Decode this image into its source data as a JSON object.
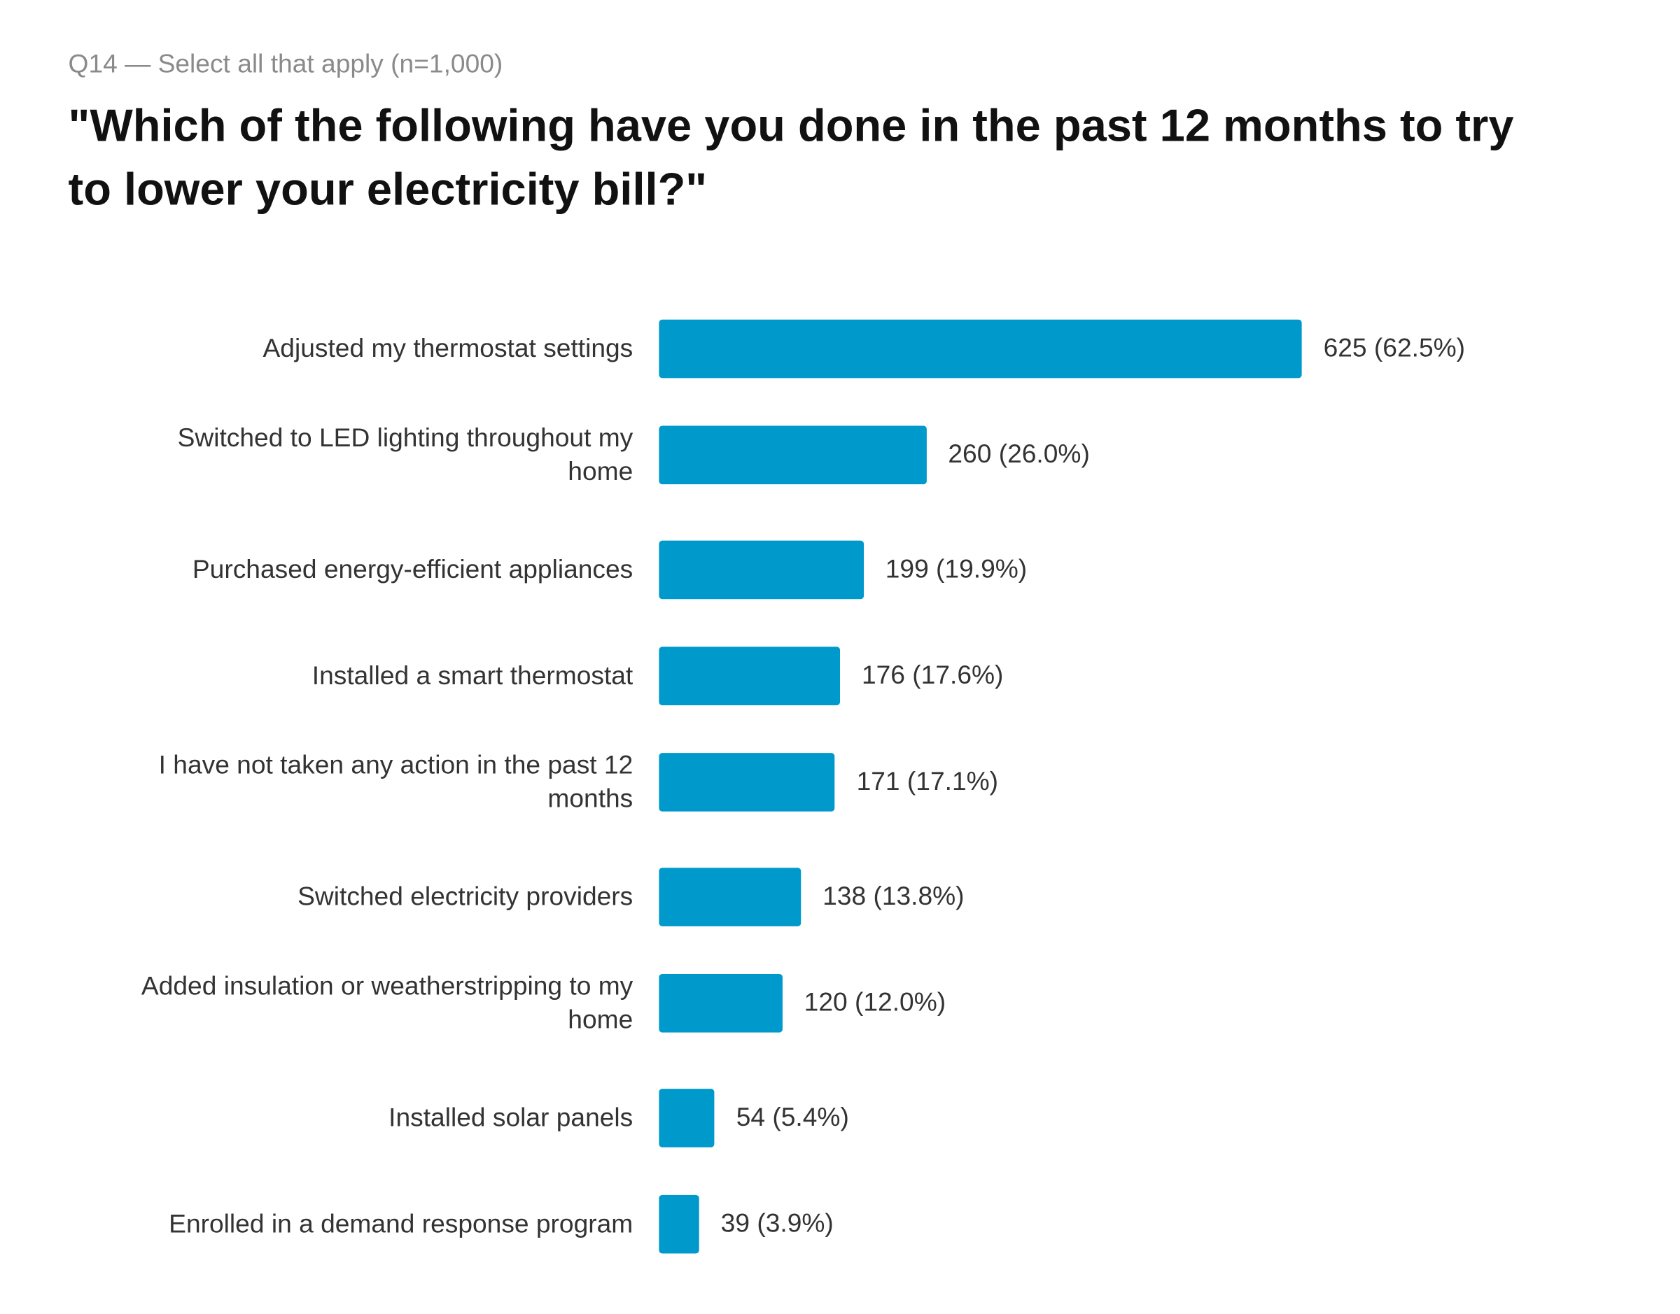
{
  "header": {
    "subtitle": "Q14 — Select all that apply (n=1,000)",
    "title": "\"Which of the following have you done in the past 12 months to try to lower your electricity bill?\""
  },
  "chart_data": {
    "type": "bar",
    "orientation": "horizontal",
    "title": "\"Which of the following have you done in the past 12 months to try to lower your electricity bill?\"",
    "subtitle": "Q14 — Select all that apply (n=1,000)",
    "bar_color": "#0099cc",
    "grid": false,
    "categories": [
      "Adjusted my thermostat settings",
      "Switched to LED lighting throughout my home",
      "Purchased energy-efficient appliances",
      "Installed a smart thermostat",
      "I have not taken any action in the past 12 months",
      "Switched electricity providers",
      "Added insulation or weatherstripping to my home",
      "Installed solar panels",
      "Enrolled in a demand response program"
    ],
    "values": [
      625,
      260,
      199,
      176,
      171,
      138,
      120,
      54,
      39
    ],
    "data_labels": [
      "625 (62.5%)",
      "260 (26.0%)",
      "199 (19.9%)",
      "176 (17.6%)",
      "171 (17.1%)",
      "138 (13.8%)",
      "120 (12.0%)",
      "54 (5.4%)",
      "39 (3.9%)"
    ]
  }
}
